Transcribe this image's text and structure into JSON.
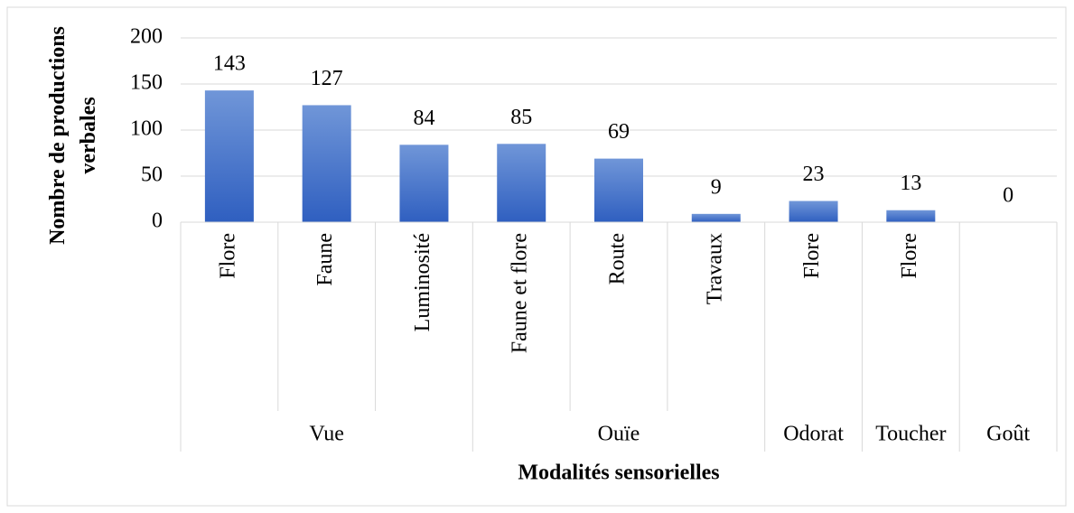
{
  "chart_data": {
    "type": "bar",
    "x_label": "Modalités sensorielles",
    "y_label": "Nombre de productions verbales",
    "groups": [
      {
        "name": "Vue",
        "categories": [
          "Flore",
          "Faune",
          "Luminosité"
        ],
        "values": [
          143,
          127,
          84
        ]
      },
      {
        "name": "Ouïe",
        "categories": [
          "Faune et flore",
          "Route",
          "Travaux"
        ],
        "values": [
          85,
          69,
          9
        ]
      },
      {
        "name": "Odorat",
        "categories": [
          "Flore"
        ],
        "values": [
          23
        ]
      },
      {
        "name": "Toucher",
        "categories": [
          "Flore"
        ],
        "values": [
          13
        ]
      },
      {
        "name": "Goût",
        "categories": [
          null
        ],
        "values": [
          0
        ]
      }
    ],
    "color": "#4472c4",
    "ylim": [
      0,
      200
    ],
    "yticks": [
      0,
      50,
      100,
      150,
      200
    ],
    "grid": true
  }
}
